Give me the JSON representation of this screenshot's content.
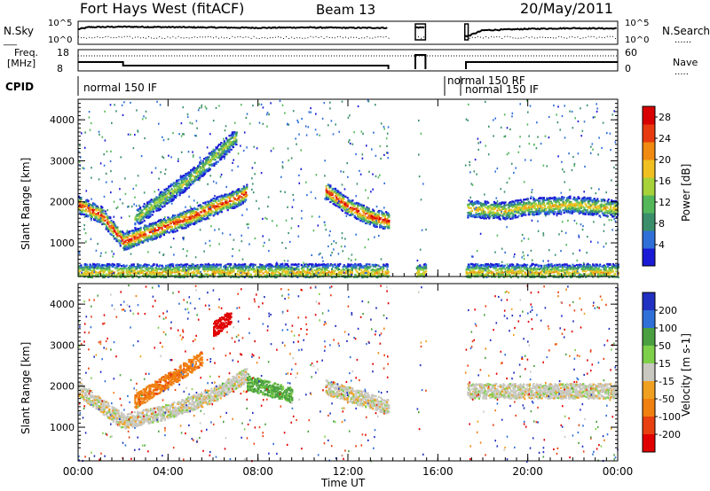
{
  "header": {
    "station": "Fort Hays West (fitACF)",
    "beam": "Beam 13",
    "date": "20/May/2011"
  },
  "top_panels": {
    "nsky_label": "N.Sky",
    "nsearch_label": "N.Search",
    "noise_ticks": [
      "10^5",
      "10^0"
    ],
    "freq_label_line1": "Freq.",
    "freq_label_line2": "[MHz]",
    "freq_ticks": [
      "18",
      "8"
    ],
    "nave_label": "Nave",
    "nave_ticks": [
      "60",
      "0"
    ],
    "cpid_label": "CPID",
    "cpid_segments": [
      "normal 150 IF",
      "normal 150 RF",
      "normal 150 IF"
    ]
  },
  "chart_data": [
    {
      "type": "heatmap",
      "name": "power",
      "xlabel": "Time UT",
      "ylabel": "Slant Range [km]",
      "x_ticks": [
        "00:00",
        "04:00",
        "08:00",
        "12:00",
        "16:00",
        "20:00",
        "00:00"
      ],
      "x_range_hours": [
        0,
        24
      ],
      "y_ticks": [
        1000,
        2000,
        3000,
        4000
      ],
      "ylim": [
        180,
        4500
      ],
      "colorbar": {
        "label": "Power [dB]",
        "ticks": [
          4,
          8,
          12,
          16,
          20,
          24,
          28
        ],
        "range": [
          0,
          30
        ],
        "colors": [
          "#1a1ad6",
          "#2f6fd8",
          "#3a8f6a",
          "#54b85a",
          "#a8d23a",
          "#f0c020",
          "#f08a10",
          "#e83a10",
          "#d80000"
        ]
      },
      "features": [
        {
          "desc": "main scatter band",
          "t": [
            0,
            1,
            2,
            3,
            4,
            5,
            6,
            7,
            7.5
          ],
          "range": [
            1950,
            1700,
            1050,
            1250,
            1450,
            1650,
            1900,
            2100,
            2250
          ],
          "peak_dB": 28
        },
        {
          "desc": "upper band",
          "t": [
            2.5,
            4,
            5,
            6,
            7
          ],
          "range": [
            1600,
            2200,
            2600,
            3100,
            3600
          ],
          "peak_dB": 16
        },
        {
          "desc": "afternoon band",
          "t": [
            11,
            12,
            13,
            13.8
          ],
          "range": [
            2300,
            1900,
            1650,
            1550
          ],
          "peak_dB": 28
        },
        {
          "desc": "evening band",
          "t": [
            17.3,
            19,
            20,
            22,
            24
          ],
          "range": [
            1850,
            1800,
            1900,
            1950,
            1850
          ],
          "peak_dB": 20
        },
        {
          "desc": "ground scatter near range floor",
          "t": [
            0,
            24
          ],
          "range": [
            300,
            300
          ],
          "peak_dB": 20
        }
      ]
    },
    {
      "type": "heatmap",
      "name": "velocity",
      "xlabel": "Time UT",
      "ylabel": "Slant Range [km]",
      "x_ticks": [
        "00:00",
        "04:00",
        "08:00",
        "12:00",
        "16:00",
        "20:00",
        "00:00"
      ],
      "x_range_hours": [
        0,
        24
      ],
      "y_ticks": [
        1000,
        2000,
        3000,
        4000
      ],
      "ylim": [
        180,
        4500
      ],
      "colorbar": {
        "label": "Velocity [m s-1]",
        "ticks": [
          200,
          100,
          50,
          15,
          -15,
          -50,
          -100,
          -200
        ],
        "colors": [
          "#2030c0",
          "#2f6fd8",
          "#4aa040",
          "#7ed04a",
          "#c8c8c0",
          "#f0a020",
          "#f08010",
          "#e84010",
          "#e00000"
        ]
      },
      "features": [
        {
          "desc": "near-zero velocity main band",
          "t": [
            0,
            2,
            4,
            6,
            7.5
          ],
          "range": [
            1950,
            1150,
            1400,
            1800,
            2300
          ],
          "v": 0
        },
        {
          "desc": "strong negative patch",
          "t": [
            6,
            6.8
          ],
          "range": [
            3400,
            3700
          ],
          "v": -250
        },
        {
          "desc": "positive patch",
          "t": [
            7.5,
            9.5
          ],
          "range": [
            2100,
            1800
          ],
          "v": 40
        },
        {
          "desc": "negative patch",
          "t": [
            2.5,
            5.5
          ],
          "range": [
            1650,
            2700
          ],
          "v": -60
        },
        {
          "desc": "afternoon near-zero band",
          "t": [
            11,
            13.8
          ],
          "range": [
            2000,
            1500
          ],
          "v": 0
        },
        {
          "desc": "evening near-zero band",
          "t": [
            17.3,
            24
          ],
          "range": [
            1900,
            1900
          ],
          "v": 0
        }
      ]
    }
  ],
  "noise_data": {
    "nsky_t": [
      0,
      0.5,
      2,
      4,
      6,
      8,
      10,
      12,
      13.8,
      15,
      15.5,
      17.3,
      18,
      20,
      22,
      24
    ],
    "nsky_log": [
      3.5,
      4.1,
      4.2,
      4.1,
      4.0,
      3.9,
      4.0,
      3.9,
      3.9,
      4.0,
      4.0,
      1.5,
      3.2,
      3.6,
      3.8,
      3.7
    ],
    "freq_t": [
      0,
      2,
      13.8,
      15,
      15.5,
      17,
      24
    ],
    "freq_mhz": [
      12,
      10,
      10,
      16,
      16,
      12,
      12
    ]
  }
}
